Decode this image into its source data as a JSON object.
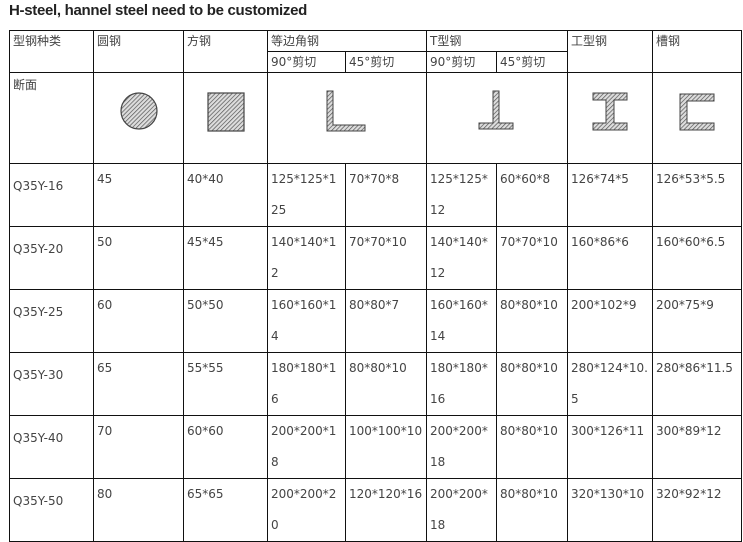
{
  "title": "H-steel, hannel steel need to be customized",
  "headers": {
    "type": "型钢种类",
    "round": "圆钢",
    "square": "方钢",
    "angle": "等边角钢",
    "tee": "T型钢",
    "ibeam": "工型钢",
    "channel": "槽钢",
    "cut90": "90°剪切",
    "cut45": "45°剪切"
  },
  "section_label": "断面",
  "shapes": [
    "circle-icon",
    "square-icon",
    "angle-icon",
    "tee-icon",
    "i-beam-icon",
    "channel-icon"
  ],
  "rows": [
    [
      "Q35Y-16",
      "45",
      "40*40",
      "125*125*125",
      "70*70*8",
      "125*125*12",
      "60*60*8",
      "126*74*5",
      "126*53*5.5"
    ],
    [
      "Q35Y-20",
      "50",
      "45*45",
      "140*140*12",
      "70*70*10",
      "140*140*12",
      "70*70*10",
      "160*86*6",
      "160*60*6.5"
    ],
    [
      "Q35Y-25",
      "60",
      "50*50",
      "160*160*14",
      "80*80*7",
      "160*160*14",
      "80*80*10",
      "200*102*9",
      "200*75*9"
    ],
    [
      "Q35Y-30",
      "65",
      "55*55",
      "180*180*16",
      "80*80*10",
      "180*180*16",
      "80*80*10",
      "280*124*10.5",
      "280*86*11.5"
    ],
    [
      "Q35Y-40",
      "70",
      "60*60",
      "200*200*18",
      "100*100*10",
      "200*200*18",
      "80*80*10",
      "300*126*11",
      "300*89*12"
    ],
    [
      "Q35Y-50",
      "80",
      "65*65",
      "200*200*20",
      "120*120*16",
      "200*200*18",
      "80*80*10",
      "320*130*10",
      "320*92*12"
    ]
  ]
}
